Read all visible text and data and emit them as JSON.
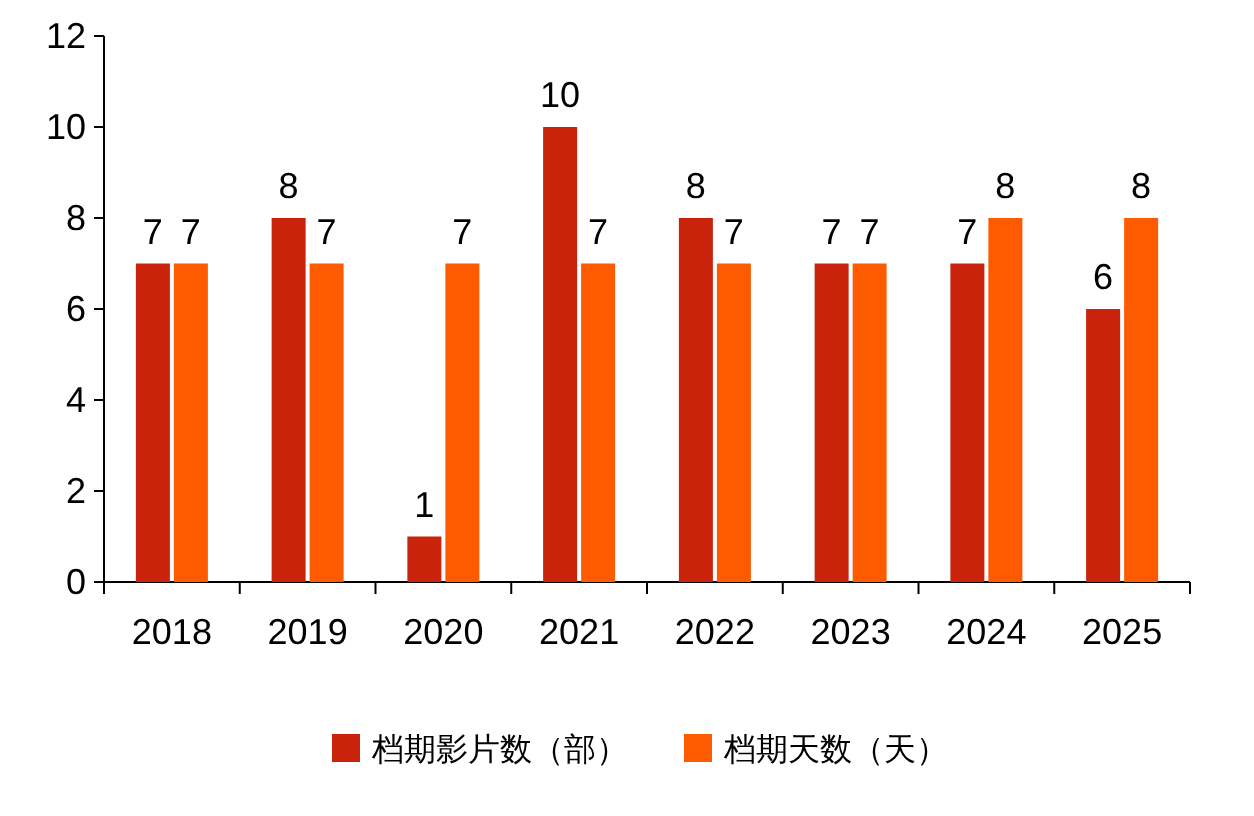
{
  "chart_data": {
    "type": "bar",
    "categories": [
      "2018",
      "2019",
      "2020",
      "2021",
      "2022",
      "2023",
      "2024",
      "2025"
    ],
    "series": [
      {
        "name": "档期影片数（部）",
        "color": "#c9230c",
        "values": [
          7,
          8,
          1,
          10,
          8,
          7,
          7,
          6
        ]
      },
      {
        "name": "档期天数（天）",
        "color": "#fe5b00",
        "values": [
          7,
          7,
          7,
          7,
          7,
          7,
          8,
          8
        ]
      }
    ],
    "ylim": [
      0,
      12
    ],
    "yticks": [
      0,
      2,
      4,
      6,
      8,
      10,
      12
    ],
    "data_labels": true,
    "legend": "bottom",
    "grid": false
  }
}
